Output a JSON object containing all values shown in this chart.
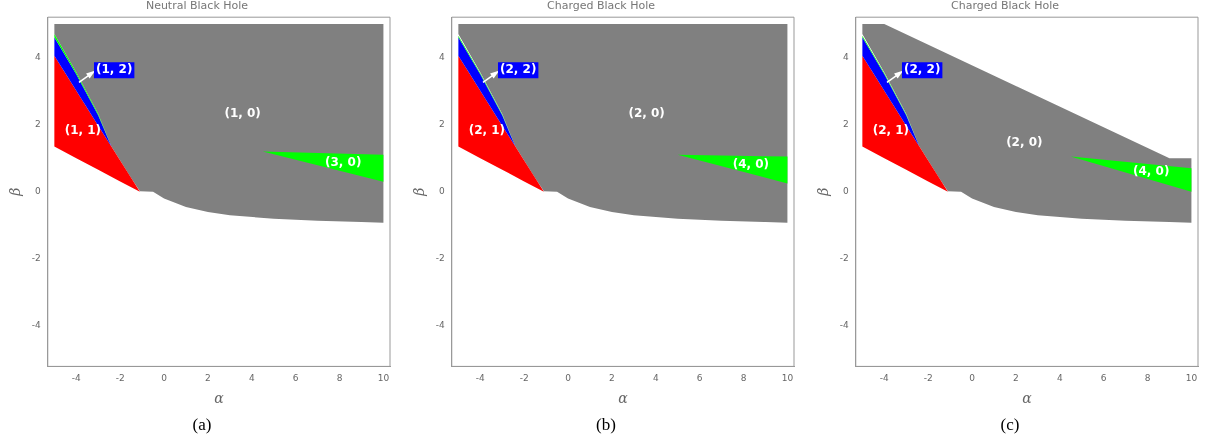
{
  "chart_data": [
    {
      "type": "area",
      "title": "Neutral Black Hole",
      "xlabel": "α",
      "ylabel": "β",
      "xlim": [
        -5.3,
        10.3
      ],
      "ylim": [
        -5.2,
        5.2
      ],
      "xticks": [
        -4,
        -2,
        0,
        2,
        4,
        6,
        8,
        10
      ],
      "yticks": [
        -4,
        -2,
        0,
        2,
        4
      ],
      "grid": false,
      "legend": false,
      "series": [
        {
          "name": "(1, 0)",
          "color": "#808080",
          "x": [
            -5,
            10,
            10,
            9,
            7,
            5,
            3,
            2,
            1,
            0,
            -0.5,
            -1.1,
            -1.5,
            -2,
            -2.4,
            -3,
            -4,
            -5
          ],
          "values": [
            5,
            5,
            -0.92,
            -0.9,
            -0.86,
            -0.8,
            -0.7,
            -0.6,
            -0.45,
            -0.2,
            0.0,
            0.02,
            0.41,
            0.93,
            1.35,
            2.32,
            3.55,
            4.7
          ]
        },
        {
          "name": "(1, 1)",
          "color": "#ff0000",
          "x": [
            -5,
            -4,
            -3,
            -2.4,
            -2,
            -1.1,
            -2,
            -3,
            -4,
            -5
          ],
          "values": [
            4.05,
            3.01,
            1.97,
            1.35,
            0.93,
            0.0,
            0.31,
            0.66,
            1.0,
            1.35
          ]
        },
        {
          "name": "(1, 2)",
          "color": "#0000ff",
          "x": [
            -5,
            -4,
            -3,
            -2.4,
            -3,
            -4,
            -5
          ],
          "values": [
            4.6,
            3.5,
            2.28,
            1.35,
            1.97,
            3.01,
            4.05
          ]
        },
        {
          "color": "#00ff00",
          "x": [
            -5,
            -4,
            -3,
            -2.4,
            -3,
            -4,
            -5
          ],
          "values": [
            4.7,
            3.55,
            2.32,
            1.35,
            2.28,
            3.5,
            4.6
          ]
        },
        {
          "name": "(3, 0)",
          "color": "#00ff00",
          "x": [
            4.5,
            10,
            10
          ],
          "values": [
            1.2,
            1.1,
            0.3
          ]
        }
      ],
      "annotations": [
        "(a)"
      ]
    },
    {
      "type": "area",
      "title": "Charged Black Hole",
      "xlabel": "α",
      "ylabel": "β",
      "xlim": [
        -5.3,
        10.3
      ],
      "ylim": [
        -5.2,
        5.2
      ],
      "xticks": [
        -4,
        -2,
        0,
        2,
        4,
        6,
        8,
        10
      ],
      "yticks": [
        -4,
        -2,
        0,
        2,
        4
      ],
      "grid": false,
      "legend": false,
      "series": [
        {
          "name": "(2, 0)",
          "color": "#808080",
          "x": [
            -5,
            10,
            10,
            9,
            7,
            5,
            3,
            2,
            1,
            0,
            -0.5,
            -1.1,
            -1.5,
            -2,
            -2.4,
            -3,
            -4,
            -5
          ],
          "values": [
            5,
            5,
            -0.92,
            -0.9,
            -0.86,
            -0.8,
            -0.7,
            -0.6,
            -0.45,
            -0.2,
            0.0,
            0.02,
            0.41,
            0.93,
            1.35,
            2.32,
            3.55,
            4.7
          ]
        },
        {
          "name": "(2, 1)",
          "color": "#ff0000",
          "x": [
            -5,
            -4,
            -3,
            -2.4,
            -2,
            -1.1,
            -2,
            -3,
            -4,
            -5
          ],
          "values": [
            4.05,
            3.01,
            1.97,
            1.35,
            0.93,
            0.0,
            0.31,
            0.66,
            1.0,
            1.35
          ]
        },
        {
          "name": "(2, 2)",
          "color": "#0000ff",
          "x": [
            -5,
            -4,
            -3,
            -2.4,
            -3,
            -4,
            -5
          ],
          "values": [
            4.6,
            3.5,
            2.28,
            1.35,
            1.97,
            3.01,
            4.05
          ]
        },
        {
          "color": "#00ff00",
          "x": [
            -5,
            -4,
            -3,
            -2.4,
            -3,
            -4,
            -5
          ],
          "values": [
            4.65,
            3.53,
            2.3,
            1.35,
            2.28,
            3.5,
            4.6
          ]
        },
        {
          "name": "(4, 0)",
          "color": "#00ff00",
          "x": [
            5,
            10,
            10
          ],
          "values": [
            1.1,
            1.05,
            0.25
          ]
        }
      ],
      "annotations": [
        "(b)"
      ]
    },
    {
      "type": "area",
      "title": "Charged Black Hole",
      "xlabel": "α",
      "ylabel": "β",
      "xlim": [
        -5.3,
        10.3
      ],
      "ylim": [
        -5.2,
        5.2
      ],
      "xticks": [
        -4,
        -2,
        0,
        2,
        4,
        6,
        8,
        10
      ],
      "yticks": [
        -4,
        -2,
        0,
        2,
        4
      ],
      "grid": false,
      "legend": false,
      "series": [
        {
          "name": "(2, 0)",
          "color": "#808080",
          "x": [
            -5,
            -4,
            9,
            10,
            10,
            9,
            7,
            5,
            3,
            2,
            1,
            0,
            -0.5,
            -1.1,
            -1.5,
            -2,
            -2.4,
            -3,
            -4,
            -5
          ],
          "values": [
            5,
            5,
            1.0,
            1.0,
            -0.92,
            -0.9,
            -0.86,
            -0.8,
            -0.7,
            -0.6,
            -0.45,
            -0.2,
            0.0,
            0.02,
            0.41,
            0.93,
            1.35,
            2.32,
            3.55,
            4.7
          ]
        },
        {
          "name": "(2, 1)",
          "color": "#ff0000",
          "x": [
            -5,
            -4,
            -3,
            -2.4,
            -2,
            -1.1,
            -2,
            -3,
            -4,
            -5
          ],
          "values": [
            4.05,
            3.01,
            1.97,
            1.35,
            0.93,
            0.0,
            0.31,
            0.66,
            1.0,
            1.35
          ]
        },
        {
          "name": "(2, 2)",
          "color": "#0000ff",
          "x": [
            -5,
            -4,
            -3,
            -2.4,
            -3,
            -4,
            -5
          ],
          "values": [
            4.6,
            3.5,
            2.28,
            1.35,
            1.97,
            3.01,
            4.05
          ]
        },
        {
          "color": "#00ff00",
          "x": [
            -5,
            -4,
            -3,
            -2.4,
            -3,
            -4,
            -5
          ],
          "values": [
            4.65,
            3.53,
            2.3,
            1.35,
            2.28,
            3.5,
            4.6
          ]
        },
        {
          "name": "(4, 0)",
          "color": "#00ff00",
          "x": [
            4.5,
            10,
            10
          ],
          "values": [
            1.05,
            0.7,
            0.0
          ]
        }
      ],
      "annotations": [
        "(c)"
      ]
    }
  ]
}
